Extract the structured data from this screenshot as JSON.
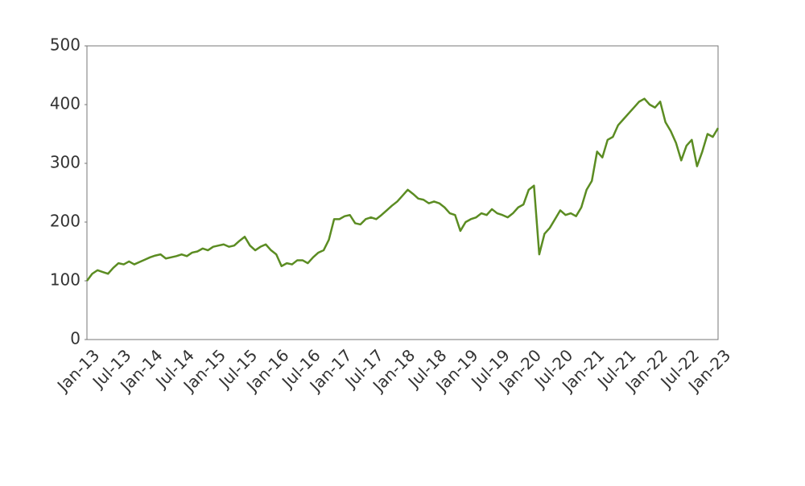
{
  "chart_data": {
    "type": "line",
    "categories": [
      "Jan-13",
      null,
      null,
      null,
      null,
      null,
      "Jul-13",
      null,
      null,
      null,
      null,
      null,
      "Jan-14",
      null,
      null,
      null,
      null,
      null,
      "Jul-14",
      null,
      null,
      null,
      null,
      null,
      "Jan-15",
      null,
      null,
      null,
      null,
      null,
      "Jul-15",
      null,
      null,
      null,
      null,
      null,
      "Jan-16",
      null,
      null,
      null,
      null,
      null,
      "Jul-16",
      null,
      null,
      null,
      null,
      null,
      "Jan-17",
      null,
      null,
      null,
      null,
      null,
      "Jul-17",
      null,
      null,
      null,
      null,
      null,
      "Jan-18",
      null,
      null,
      null,
      null,
      null,
      "Jul-18",
      null,
      null,
      null,
      null,
      null,
      "Jan-19",
      null,
      null,
      null,
      null,
      null,
      "Jul-19",
      null,
      null,
      null,
      null,
      null,
      "Jan-20",
      null,
      null,
      null,
      null,
      null,
      "Jul-20",
      null,
      null,
      null,
      null,
      null,
      "Jan-21",
      null,
      null,
      null,
      null,
      null,
      "Jul-21",
      null,
      null,
      null,
      null,
      null,
      "Jan-22",
      null,
      null,
      null,
      null,
      null,
      "Jul-22",
      null,
      null,
      null,
      null,
      null,
      "Jan-23"
    ],
    "series": [
      {
        "color": "#5b8c22",
        "values": [
          100,
          112,
          118,
          115,
          112,
          122,
          130,
          128,
          133,
          128,
          132,
          136,
          140,
          143,
          145,
          138,
          140,
          142,
          145,
          142,
          148,
          150,
          155,
          152,
          158,
          160,
          162,
          158,
          160,
          168,
          175,
          160,
          152,
          158,
          162,
          152,
          145,
          125,
          130,
          128,
          135,
          135,
          130,
          140,
          148,
          152,
          170,
          205,
          205,
          210,
          212,
          198,
          196,
          205,
          208,
          205,
          212,
          220,
          228,
          235,
          245,
          255,
          248,
          240,
          238,
          232,
          235,
          232,
          225,
          215,
          212,
          185,
          200,
          205,
          208,
          215,
          212,
          222,
          215,
          212,
          208,
          215,
          225,
          230,
          255,
          262,
          145,
          180,
          190,
          205,
          220,
          212,
          215,
          210,
          225,
          255,
          270,
          320,
          310,
          340,
          345,
          365,
          375,
          385,
          395,
          405,
          410,
          400,
          395,
          405,
          370,
          355,
          335,
          305,
          330,
          340,
          295,
          320,
          350,
          345,
          360
        ]
      }
    ],
    "ylim": [
      0,
      500
    ],
    "yticks": [
      0,
      100,
      200,
      300,
      400,
      500
    ]
  }
}
